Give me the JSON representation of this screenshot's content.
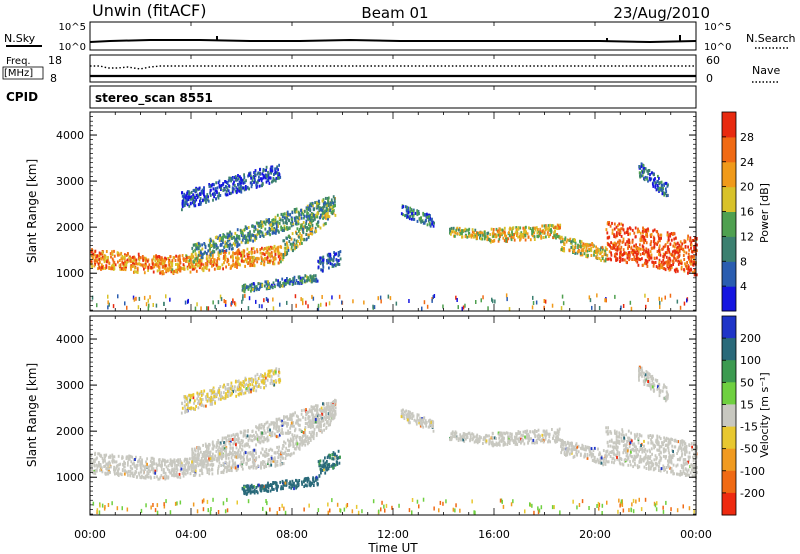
{
  "header": {
    "station": "Unwin (fitACF)",
    "beam": "Beam 01",
    "date": "23/Aug/2010"
  },
  "status_panels": {
    "nsky_label": "N.Sky",
    "nsearch_label": "N.Search",
    "noise_tick_hi": "10^5",
    "noise_tick_lo": "10^0",
    "freq_label_1": "Freq.",
    "freq_label_2": "[MHz]",
    "freq_tick_hi": "18",
    "freq_tick_lo": "8",
    "nave_label": "Nave",
    "nave_tick_hi": "60",
    "nave_tick_lo": "0",
    "cpid_label": "CPID",
    "cpid_value": "stereo_scan 8551"
  },
  "chart_data": [
    {
      "type": "heatmap",
      "panel": "power",
      "ylabel": "Slant Range [km]",
      "xlabel": "",
      "ylim": [
        180,
        4500
      ],
      "xlim": [
        0,
        24
      ],
      "yticks": [
        "1000",
        "2000",
        "3000",
        "4000"
      ],
      "colorbar": {
        "label": "Power [dB]",
        "ticks": [
          "4",
          "8",
          "12",
          "16",
          "20",
          "24",
          "28"
        ],
        "range": [
          0,
          32
        ],
        "colors": [
          "#1515e0",
          "#2a5db0",
          "#3c8070",
          "#4fa050",
          "#d8c22a",
          "#f09a1a",
          "#f06a14",
          "#e82a10"
        ]
      },
      "echo_bands": [
        {
          "t0": 0.0,
          "t1": 3.0,
          "r0": 1300,
          "r1": 1150,
          "w": 260,
          "level": 0.75
        },
        {
          "t0": 3.0,
          "t1": 7.6,
          "r0": 1150,
          "r1": 1400,
          "w": 240,
          "level": 0.7
        },
        {
          "t0": 7.6,
          "t1": 9.7,
          "r0": 1500,
          "r1": 2450,
          "w": 260,
          "level": 0.45
        },
        {
          "t0": 4.0,
          "t1": 9.7,
          "r0": 1400,
          "r1": 2500,
          "w": 240,
          "level": 0.35
        },
        {
          "t0": 3.6,
          "t1": 7.5,
          "r0": 2550,
          "r1": 3200,
          "w": 240,
          "level": 0.15
        },
        {
          "t0": 6.0,
          "t1": 9.0,
          "r0": 650,
          "r1": 900,
          "w": 100,
          "level": 0.3
        },
        {
          "t0": 9.0,
          "t1": 9.9,
          "r0": 1150,
          "r1": 1350,
          "w": 200,
          "level": 0.2
        },
        {
          "t0": 14.2,
          "t1": 15.8,
          "r0": 1900,
          "r1": 1800,
          "w": 120,
          "level": 0.55
        },
        {
          "t0": 15.8,
          "t1": 18.6,
          "r0": 1800,
          "r1": 1900,
          "w": 180,
          "level": 0.6
        },
        {
          "t0": 18.6,
          "t1": 20.4,
          "r0": 1650,
          "r1": 1400,
          "w": 200,
          "level": 0.55
        },
        {
          "t0": 20.4,
          "t1": 24.0,
          "r0": 1700,
          "r1": 1350,
          "w": 520,
          "level": 0.9
        },
        {
          "t0": 21.7,
          "t1": 22.9,
          "r0": 3250,
          "r1": 2750,
          "w": 200,
          "level": 0.2
        },
        {
          "t0": 12.3,
          "t1": 13.6,
          "r0": 2350,
          "r1": 2100,
          "w": 150,
          "level": 0.25
        }
      ]
    },
    {
      "type": "heatmap",
      "panel": "velocity",
      "ylabel": "Slant Range [km]",
      "xlabel": "Time UT",
      "ylim": [
        180,
        4500
      ],
      "xlim": [
        0,
        24
      ],
      "xticks": [
        "00:00",
        "04:00",
        "08:00",
        "12:00",
        "16:00",
        "20:00",
        "00:00"
      ],
      "yticks": [
        "1000",
        "2000",
        "3000",
        "4000"
      ],
      "colorbar": {
        "label": "Velocity [m s⁻¹]",
        "ticks": [
          "200",
          "100",
          "50",
          "15",
          "-15",
          "-50",
          "-100",
          "-200"
        ],
        "colors": [
          "#1f35c8",
          "#2a6a7a",
          "#3c9a50",
          "#6fd040",
          "#c8c8c0",
          "#e8c830",
          "#f09a20",
          "#f06a14",
          "#ee2a10"
        ]
      },
      "echo_bands": [
        {
          "t0": 0.0,
          "t1": 3.0,
          "r0": 1300,
          "r1": 1150,
          "w": 280,
          "level": 0.5
        },
        {
          "t0": 3.0,
          "t1": 7.6,
          "r0": 1150,
          "r1": 1450,
          "w": 260,
          "level": 0.5
        },
        {
          "t0": 7.6,
          "t1": 9.7,
          "r0": 1500,
          "r1": 2450,
          "w": 300,
          "level": 0.5
        },
        {
          "t0": 4.0,
          "t1": 9.7,
          "r0": 1400,
          "r1": 2500,
          "w": 260,
          "level": 0.5
        },
        {
          "t0": 3.6,
          "t1": 7.5,
          "r0": 2550,
          "r1": 3200,
          "w": 220,
          "level": 0.45
        },
        {
          "t0": 6.0,
          "t1": 9.0,
          "r0": 700,
          "r1": 900,
          "w": 120,
          "level": 0.85
        },
        {
          "t0": 9.0,
          "t1": 9.9,
          "r0": 1150,
          "r1": 1450,
          "w": 220,
          "level": 0.8
        },
        {
          "t0": 14.2,
          "t1": 15.8,
          "r0": 1900,
          "r1": 1800,
          "w": 120,
          "level": 0.5
        },
        {
          "t0": 15.8,
          "t1": 18.6,
          "r0": 1800,
          "r1": 1900,
          "w": 180,
          "level": 0.5
        },
        {
          "t0": 18.6,
          "t1": 20.4,
          "r0": 1650,
          "r1": 1400,
          "w": 200,
          "level": 0.5
        },
        {
          "t0": 20.4,
          "t1": 24.0,
          "r0": 1700,
          "r1": 1350,
          "w": 480,
          "level": 0.5
        },
        {
          "t0": 21.7,
          "t1": 22.9,
          "r0": 3250,
          "r1": 2750,
          "w": 200,
          "level": 0.5
        },
        {
          "t0": 12.3,
          "t1": 13.6,
          "r0": 2350,
          "r1": 2100,
          "w": 150,
          "level": 0.5
        }
      ]
    }
  ]
}
